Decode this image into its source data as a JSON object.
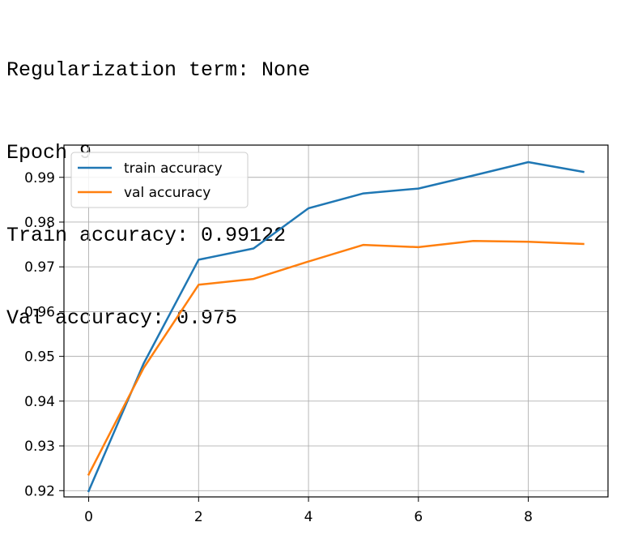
{
  "console": {
    "lines": [
      "Regularization term: None",
      "Epoch 9",
      "Train accuracy: 0.99122",
      "Val accuracy: 0.975"
    ]
  },
  "chart_data": {
    "type": "line",
    "title": "",
    "xlabel": "",
    "ylabel": "",
    "x": [
      0,
      1,
      2,
      3,
      4,
      5,
      6,
      7,
      8,
      9
    ],
    "xlim": [
      -0.45,
      9.45
    ],
    "ylim": [
      0.9186,
      0.9972
    ],
    "xticks": [
      0,
      2,
      4,
      6,
      8
    ],
    "yticks": [
      0.92,
      0.93,
      0.94,
      0.95,
      0.96,
      0.97,
      0.98,
      0.99
    ],
    "grid": true,
    "legend_position": "upper-left",
    "series": [
      {
        "name": "train accuracy",
        "color": "#1f77b4",
        "values": [
          0.9199,
          0.9484,
          0.9716,
          0.9741,
          0.9831,
          0.9864,
          0.9875,
          0.9904,
          0.9934,
          0.99122
        ]
      },
      {
        "name": "val accuracy",
        "color": "#ff7f0e",
        "values": [
          0.9236,
          0.9474,
          0.966,
          0.9673,
          0.9712,
          0.9749,
          0.9744,
          0.9758,
          0.9756,
          0.9751
        ]
      }
    ]
  }
}
